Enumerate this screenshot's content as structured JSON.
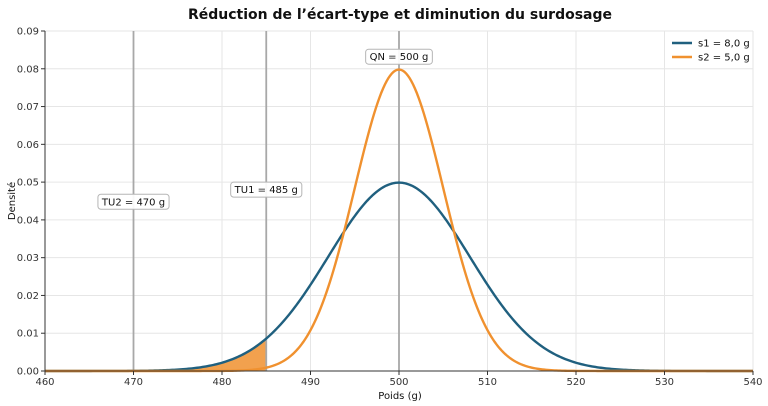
{
  "chart_data": {
    "type": "line",
    "title": "Réduction de l’écart-type et diminution du surdosage",
    "xlabel": "Poids (g)",
    "ylabel": "Densité",
    "xlim": [
      460,
      540
    ],
    "ylim": [
      0,
      0.09
    ],
    "xticks": [
      "460",
      "470",
      "480",
      "490",
      "500",
      "510",
      "520",
      "530",
      "540"
    ],
    "yticks": [
      "0.00",
      "0.01",
      "0.02",
      "0.03",
      "0.04",
      "0.05",
      "0.06",
      "0.07",
      "0.08",
      "0.09"
    ],
    "grid": true,
    "legend_position": "top-right",
    "series": [
      {
        "name": "s1 = 8,0 g",
        "mean": 500,
        "sd": 8.0,
        "color": "#20607f"
      },
      {
        "name": "s2 = 5,0 g",
        "mean": 500,
        "sd": 5.0,
        "color": "#f0912f"
      }
    ],
    "shaded_region": {
      "series": 0,
      "from": 460,
      "to": 485,
      "color": "#f0912f"
    },
    "vlines": [
      {
        "x": 470,
        "label": "TU2 = 470 g",
        "label_y": 0.0448
      },
      {
        "x": 485,
        "label": "TU1 = 485 g",
        "label_y": 0.048
      },
      {
        "x": 500,
        "label": "QN = 500 g",
        "label_y": 0.0832
      }
    ]
  }
}
